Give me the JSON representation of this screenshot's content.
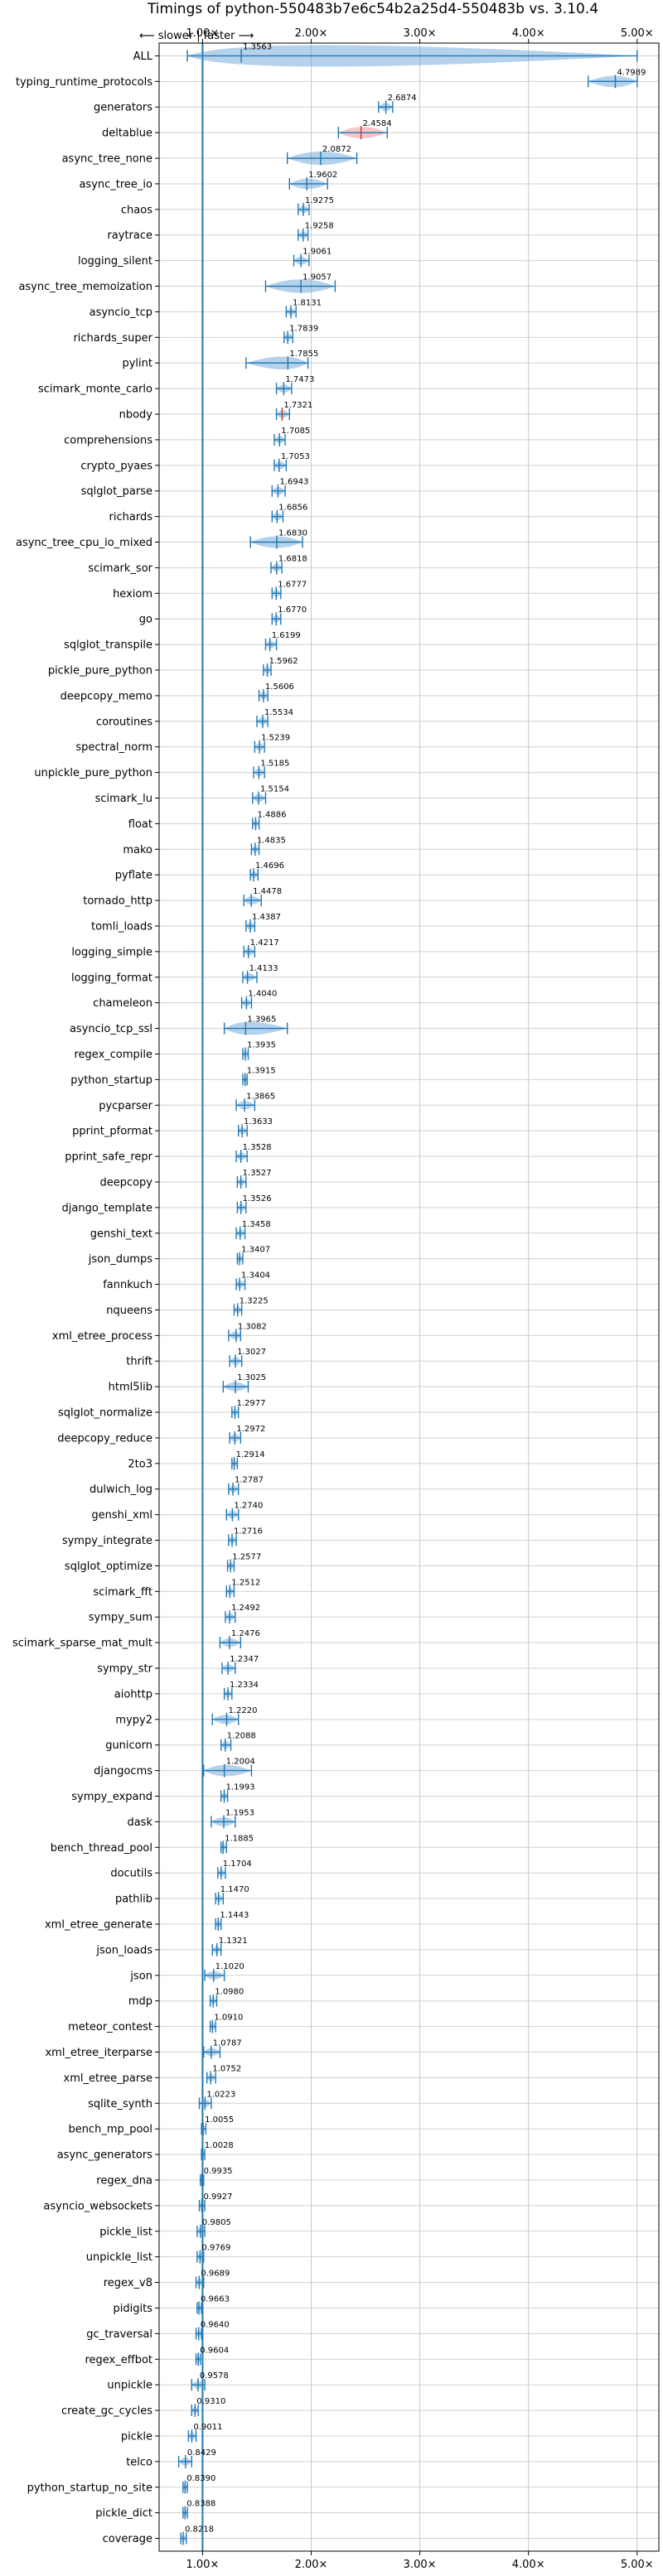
{
  "chart_data": {
    "type": "violin",
    "title": "Timings of python-550483b7e6c54b2a25d4-550483b vs. 3.10.4",
    "direction_note": "⟵ slower | faster ⟶",
    "x_ticks": [
      "1.00×",
      "2.00×",
      "3.00×",
      "4.00×",
      "5.00×"
    ],
    "x_tick_values": [
      1,
      2,
      3,
      4,
      5
    ],
    "xlim": [
      0.6,
      5.2
    ],
    "reference_line": 1.0,
    "grid": true,
    "colors": {
      "violin": "#5b9bd5",
      "regressed": "#e8807f",
      "line": "#1f77b4"
    },
    "categories": [
      "ALL",
      "typing_runtime_protocols",
      "generators",
      "deltablue",
      "async_tree_none",
      "async_tree_io",
      "chaos",
      "raytrace",
      "logging_silent",
      "async_tree_memoization",
      "asyncio_tcp",
      "richards_super",
      "pylint",
      "scimark_monte_carlo",
      "nbody",
      "comprehensions",
      "crypto_pyaes",
      "sqlglot_parse",
      "richards",
      "async_tree_cpu_io_mixed",
      "scimark_sor",
      "hexiom",
      "go",
      "sqlglot_transpile",
      "pickle_pure_python",
      "deepcopy_memo",
      "coroutines",
      "spectral_norm",
      "unpickle_pure_python",
      "scimark_lu",
      "float",
      "mako",
      "pyflate",
      "tornado_http",
      "tomli_loads",
      "logging_simple",
      "logging_format",
      "chameleon",
      "asyncio_tcp_ssl",
      "regex_compile",
      "python_startup",
      "pycparser",
      "pprint_pformat",
      "pprint_safe_repr",
      "deepcopy",
      "django_template",
      "genshi_text",
      "json_dumps",
      "fannkuch",
      "nqueens",
      "xml_etree_process",
      "thrift",
      "html5lib",
      "sqlglot_normalize",
      "deepcopy_reduce",
      "2to3",
      "dulwich_log",
      "genshi_xml",
      "sympy_integrate",
      "sqlglot_optimize",
      "scimark_fft",
      "sympy_sum",
      "scimark_sparse_mat_mult",
      "sympy_str",
      "aiohttp",
      "mypy2",
      "gunicorn",
      "djangocms",
      "sympy_expand",
      "dask",
      "bench_thread_pool",
      "docutils",
      "pathlib",
      "xml_etree_generate",
      "json_loads",
      "json",
      "mdp",
      "meteor_contest",
      "xml_etree_iterparse",
      "xml_etree_parse",
      "sqlite_synth",
      "bench_mp_pool",
      "async_generators",
      "regex_dna",
      "asyncio_websockets",
      "pickle_list",
      "unpickle_list",
      "regex_v8",
      "pidigits",
      "gc_traversal",
      "regex_effbot",
      "unpickle",
      "create_gc_cycles",
      "pickle",
      "telco",
      "python_startup_no_site",
      "pickle_dict",
      "coverage"
    ],
    "values": [
      1.3563,
      4.7989,
      2.6874,
      2.4584,
      2.0872,
      1.9602,
      1.9275,
      1.9258,
      1.9061,
      1.9057,
      1.8131,
      1.7839,
      1.7855,
      1.7473,
      1.7321,
      1.7085,
      1.7053,
      1.6943,
      1.6856,
      1.683,
      1.6818,
      1.6777,
      1.677,
      1.6199,
      1.5962,
      1.5606,
      1.5534,
      1.5239,
      1.5185,
      1.5154,
      1.4886,
      1.4835,
      1.4696,
      1.4478,
      1.4387,
      1.4217,
      1.4133,
      1.404,
      1.3965,
      1.3935,
      1.3915,
      1.3865,
      1.3633,
      1.3528,
      1.3527,
      1.3526,
      1.3458,
      1.3407,
      1.3404,
      1.3225,
      1.3082,
      1.3027,
      1.3025,
      1.2977,
      1.2972,
      1.2914,
      1.2787,
      1.274,
      1.2716,
      1.2577,
      1.2512,
      1.2492,
      1.2476,
      1.2347,
      1.2334,
      1.222,
      1.2088,
      1.2004,
      1.1993,
      1.1953,
      1.1885,
      1.1704,
      1.147,
      1.1443,
      1.1321,
      1.102,
      1.098,
      1.091,
      1.0787,
      1.0752,
      1.0223,
      1.0055,
      1.0028,
      0.9935,
      0.9927,
      0.9805,
      0.9769,
      0.9689,
      0.9663,
      0.964,
      0.9604,
      0.9578,
      0.931,
      0.9011,
      0.8429,
      0.839,
      0.8388,
      0.8218
    ],
    "value_labels": [
      "1.3563",
      "4.7989",
      "2.6874",
      "2.4584",
      "2.0872",
      "1.9602",
      "1.9275",
      "1.9258",
      "1.9061",
      "1.9057",
      "1.8131",
      "1.7839",
      "1.7855",
      "1.7473",
      "1.7321",
      "1.7085",
      "1.7053",
      "1.6943",
      "1.6856",
      "1.6830",
      "1.6818",
      "1.6777",
      "1.6770",
      "1.6199",
      "1.5962",
      "1.5606",
      "1.5534",
      "1.5239",
      "1.5185",
      "1.5154",
      "1.4886",
      "1.4835",
      "1.4696",
      "1.4478",
      "1.4387",
      "1.4217",
      "1.4133",
      "1.4040",
      "1.3965",
      "1.3935",
      "1.3915",
      "1.3865",
      "1.3633",
      "1.3528",
      "1.3527",
      "1.3526",
      "1.3458",
      "1.3407",
      "1.3404",
      "1.3225",
      "1.3082",
      "1.3027",
      "1.3025",
      "1.2977",
      "1.2972",
      "1.2914",
      "1.2787",
      "1.2740",
      "1.2716",
      "1.2577",
      "1.2512",
      "1.2492",
      "1.2476",
      "1.2347",
      "1.2334",
      "1.2220",
      "1.2088",
      "1.2004",
      "1.1993",
      "1.1953",
      "1.1885",
      "1.1704",
      "1.1470",
      "1.1443",
      "1.1321",
      "1.1020",
      "1.0980",
      "1.0910",
      "1.0787",
      "1.0752",
      "1.0223",
      "1.0055",
      "1.0028",
      "0.9935",
      "0.9927",
      "0.9805",
      "0.9769",
      "0.9689",
      "0.9663",
      "0.9640",
      "0.9604",
      "0.9578",
      "0.9310",
      "0.9011",
      "0.8429",
      "0.8390",
      "0.8388",
      "0.8218"
    ],
    "ranges": [
      [
        0.86,
        5.0
      ],
      [
        4.55,
        5.0
      ],
      [
        2.62,
        2.75
      ],
      [
        2.25,
        2.7
      ],
      [
        1.78,
        2.42
      ],
      [
        1.8,
        2.15
      ],
      [
        1.88,
        1.98
      ],
      [
        1.88,
        1.97
      ],
      [
        1.84,
        1.98
      ],
      [
        1.58,
        2.22
      ],
      [
        1.77,
        1.86
      ],
      [
        1.75,
        1.83
      ],
      [
        1.4,
        1.97
      ],
      [
        1.68,
        1.82
      ],
      [
        1.68,
        1.8
      ],
      [
        1.66,
        1.76
      ],
      [
        1.66,
        1.77
      ],
      [
        1.64,
        1.76
      ],
      [
        1.64,
        1.74
      ],
      [
        1.44,
        1.92
      ],
      [
        1.63,
        1.73
      ],
      [
        1.64,
        1.72
      ],
      [
        1.64,
        1.72
      ],
      [
        1.58,
        1.68
      ],
      [
        1.56,
        1.63
      ],
      [
        1.52,
        1.6
      ],
      [
        1.5,
        1.6
      ],
      [
        1.48,
        1.57
      ],
      [
        1.47,
        1.57
      ],
      [
        1.46,
        1.58
      ],
      [
        1.46,
        1.52
      ],
      [
        1.45,
        1.52
      ],
      [
        1.44,
        1.51
      ],
      [
        1.38,
        1.54
      ],
      [
        1.4,
        1.48
      ],
      [
        1.38,
        1.48
      ],
      [
        1.37,
        1.5
      ],
      [
        1.36,
        1.45
      ],
      [
        1.2,
        1.78
      ],
      [
        1.37,
        1.42
      ],
      [
        1.37,
        1.41
      ],
      [
        1.31,
        1.48
      ],
      [
        1.33,
        1.41
      ],
      [
        1.31,
        1.41
      ],
      [
        1.32,
        1.4
      ],
      [
        1.32,
        1.4
      ],
      [
        1.31,
        1.39
      ],
      [
        1.32,
        1.37
      ],
      [
        1.31,
        1.39
      ],
      [
        1.29,
        1.36
      ],
      [
        1.24,
        1.35
      ],
      [
        1.25,
        1.36
      ],
      [
        1.19,
        1.42
      ],
      [
        1.27,
        1.33
      ],
      [
        1.25,
        1.35
      ],
      [
        1.27,
        1.32
      ],
      [
        1.24,
        1.33
      ],
      [
        1.22,
        1.33
      ],
      [
        1.24,
        1.31
      ],
      [
        1.23,
        1.29
      ],
      [
        1.22,
        1.29
      ],
      [
        1.21,
        1.3
      ],
      [
        1.16,
        1.35
      ],
      [
        1.18,
        1.3
      ],
      [
        1.2,
        1.27
      ],
      [
        1.09,
        1.33
      ],
      [
        1.17,
        1.26
      ],
      [
        1.01,
        1.45
      ],
      [
        1.17,
        1.23
      ],
      [
        1.08,
        1.3
      ],
      [
        1.17,
        1.22
      ],
      [
        1.14,
        1.21
      ],
      [
        1.12,
        1.19
      ],
      [
        1.12,
        1.17
      ],
      [
        1.09,
        1.17
      ],
      [
        1.02,
        1.2
      ],
      [
        1.07,
        1.13
      ],
      [
        1.07,
        1.12
      ],
      [
        1.01,
        1.16
      ],
      [
        1.04,
        1.12
      ],
      [
        0.97,
        1.08
      ],
      [
        0.99,
        1.03
      ],
      [
        0.99,
        1.02
      ],
      [
        0.98,
        1.01
      ],
      [
        0.97,
        1.02
      ],
      [
        0.95,
        1.02
      ],
      [
        0.95,
        1.01
      ],
      [
        0.94,
        1.01
      ],
      [
        0.95,
        0.99
      ],
      [
        0.94,
        0.99
      ],
      [
        0.94,
        0.98
      ],
      [
        0.9,
        1.02
      ],
      [
        0.9,
        0.96
      ],
      [
        0.87,
        0.94
      ],
      [
        0.78,
        0.9
      ],
      [
        0.82,
        0.86
      ],
      [
        0.82,
        0.86
      ],
      [
        0.8,
        0.85
      ]
    ]
  }
}
